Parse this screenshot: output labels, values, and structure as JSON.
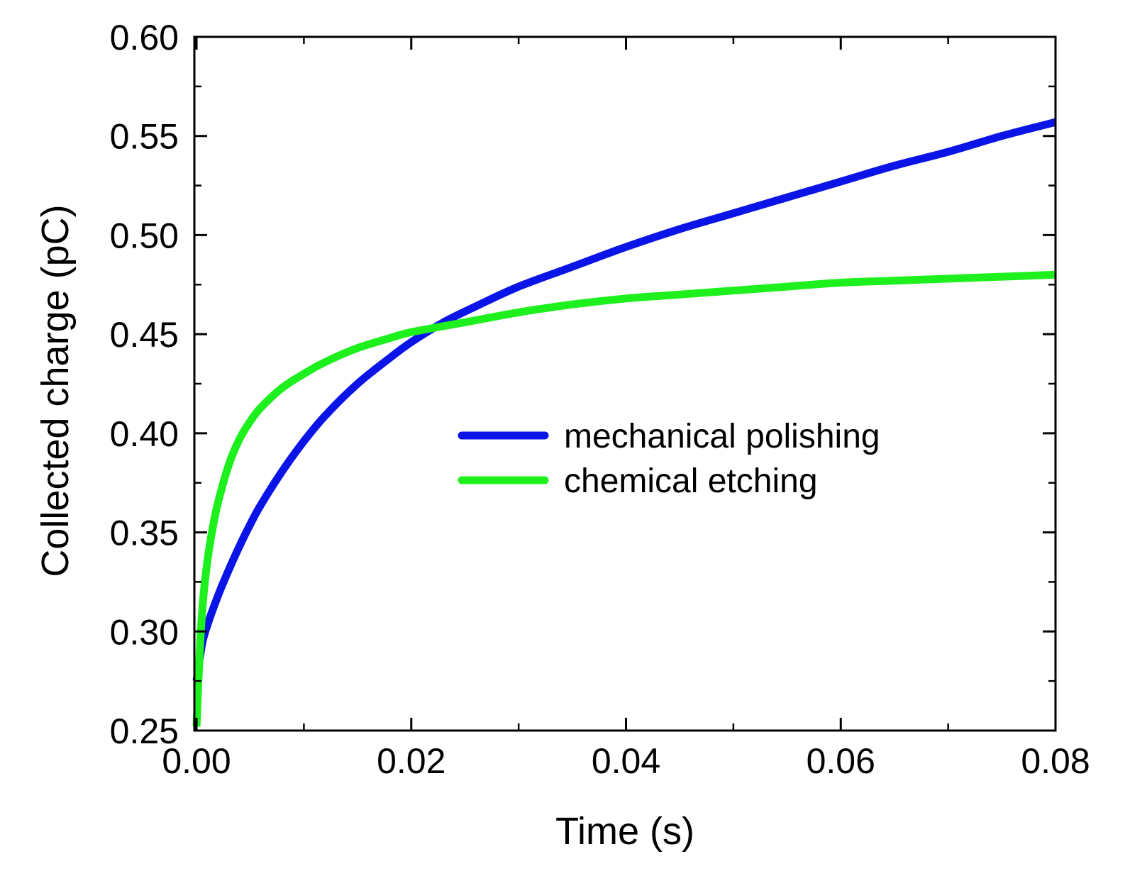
{
  "chart_data": {
    "type": "line",
    "xlabel": "Time (s)",
    "ylabel": "Collected charge (pC)",
    "xlim": [
      -0.0002,
      0.08
    ],
    "ylim": [
      0.25,
      0.6
    ],
    "x_ticks": [
      0.0,
      0.02,
      0.04,
      0.06,
      0.08
    ],
    "x_tick_labels": [
      "0.00",
      "0.02",
      "0.04",
      "0.06",
      "0.08"
    ],
    "y_ticks": [
      0.25,
      0.3,
      0.35,
      0.4,
      0.45,
      0.5,
      0.55,
      0.6
    ],
    "y_tick_labels": [
      "0.25",
      "0.30",
      "0.35",
      "0.40",
      "0.45",
      "0.50",
      "0.55",
      "0.60"
    ],
    "grid": false,
    "legend_position": "center-right",
    "series": [
      {
        "name": "mechanical polishing",
        "color": "#0a14e6",
        "x": [
          0.0,
          0.0005,
          0.001,
          0.002,
          0.003,
          0.004,
          0.005,
          0.006,
          0.008,
          0.01,
          0.012,
          0.015,
          0.018,
          0.02,
          0.023,
          0.026,
          0.03,
          0.035,
          0.04,
          0.045,
          0.05,
          0.055,
          0.06,
          0.065,
          0.07,
          0.075,
          0.08
        ],
        "y": [
          0.275,
          0.293,
          0.303,
          0.318,
          0.331,
          0.343,
          0.354,
          0.364,
          0.381,
          0.396,
          0.409,
          0.425,
          0.438,
          0.446,
          0.456,
          0.464,
          0.474,
          0.484,
          0.494,
          0.503,
          0.511,
          0.519,
          0.527,
          0.535,
          0.542,
          0.55,
          0.557
        ]
      },
      {
        "name": "chemical etching",
        "color": "#1ef01e",
        "x": [
          0.0,
          0.0003,
          0.0006,
          0.001,
          0.0015,
          0.002,
          0.003,
          0.004,
          0.005,
          0.006,
          0.008,
          0.01,
          0.012,
          0.015,
          0.018,
          0.02,
          0.025,
          0.03,
          0.035,
          0.04,
          0.045,
          0.05,
          0.055,
          0.06,
          0.065,
          0.07,
          0.075,
          0.08
        ],
        "y": [
          0.252,
          0.29,
          0.315,
          0.335,
          0.352,
          0.365,
          0.384,
          0.397,
          0.406,
          0.413,
          0.423,
          0.43,
          0.436,
          0.443,
          0.448,
          0.451,
          0.456,
          0.461,
          0.465,
          0.468,
          0.47,
          0.472,
          0.474,
          0.476,
          0.477,
          0.478,
          0.479,
          0.48
        ]
      }
    ]
  }
}
